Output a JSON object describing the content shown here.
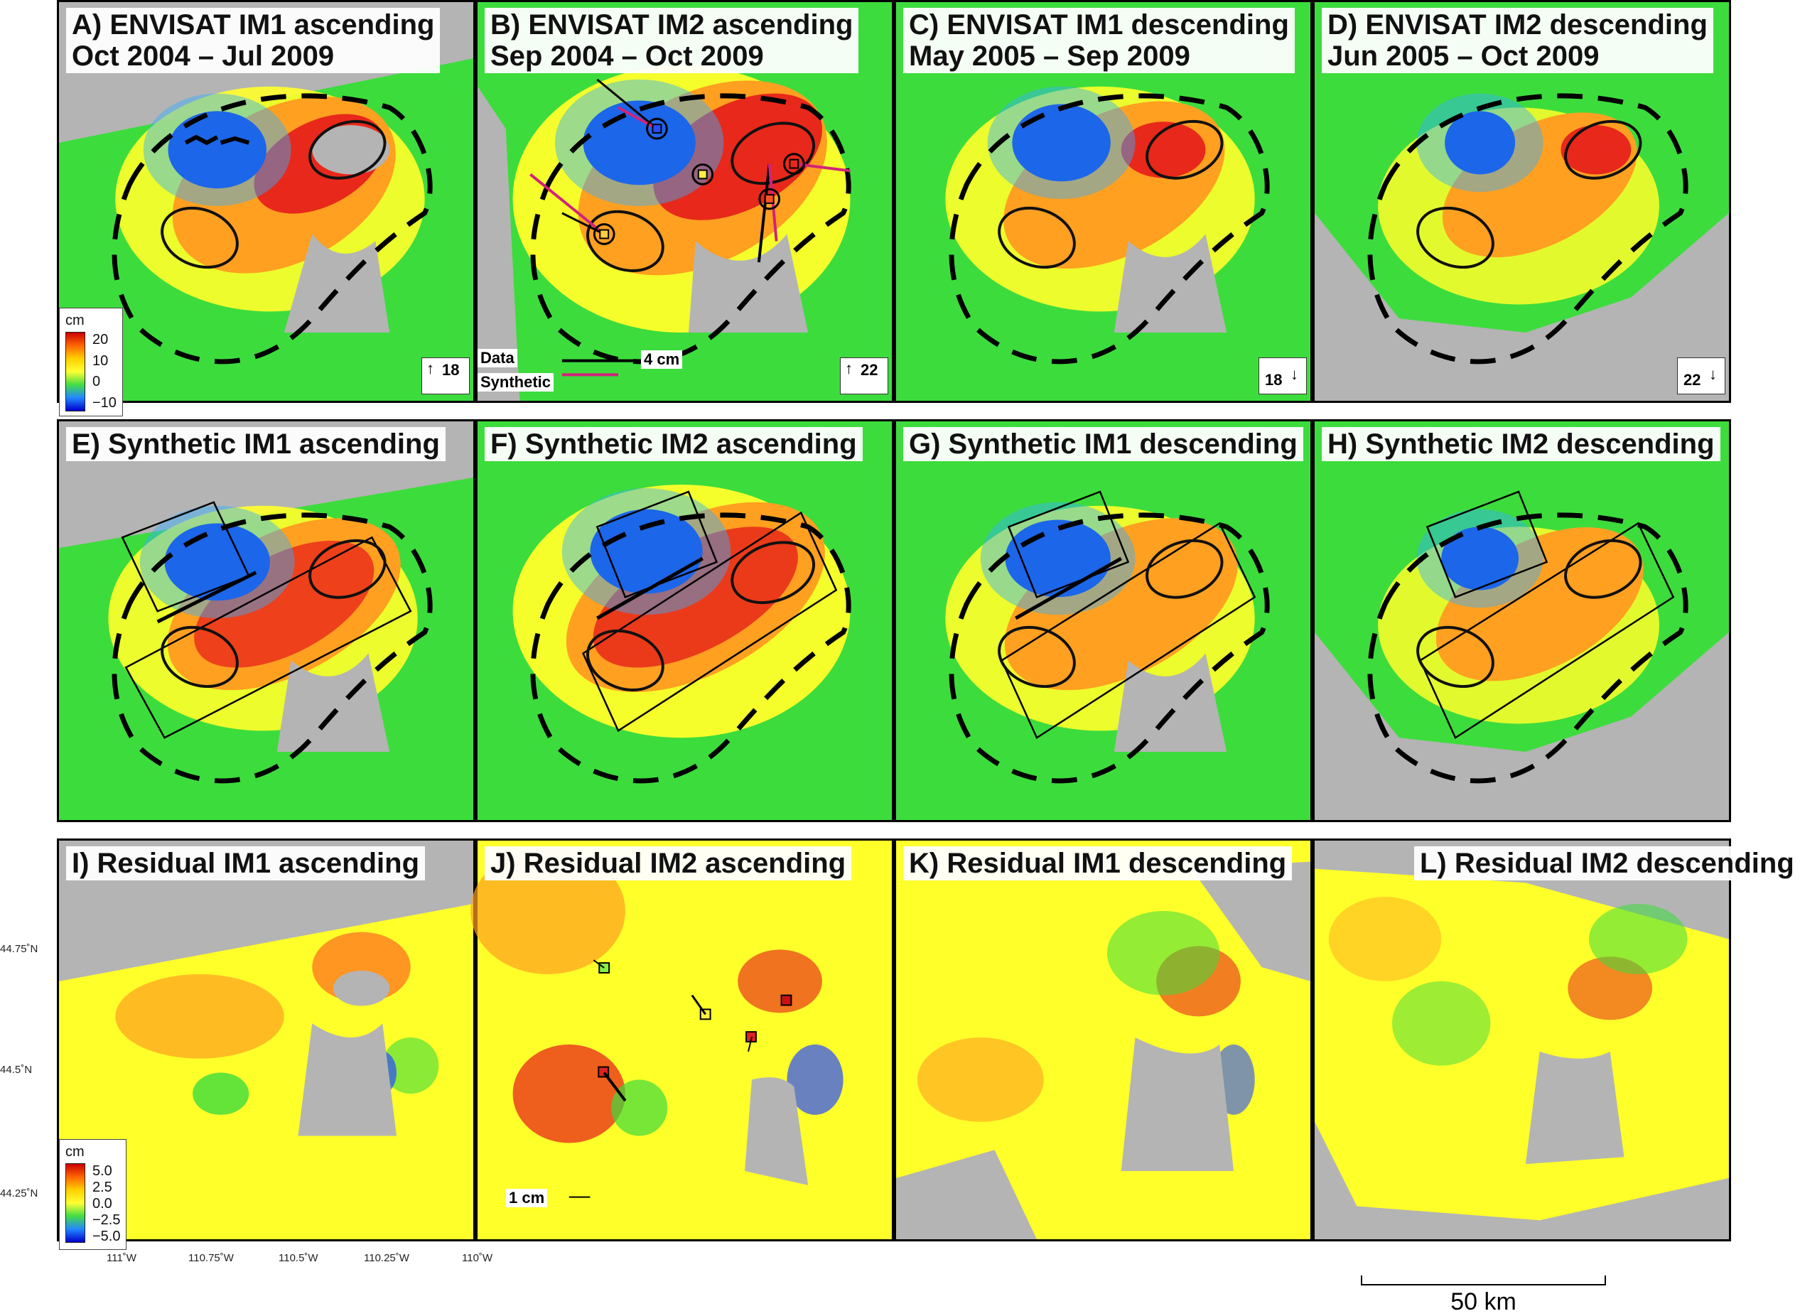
{
  "panels": {
    "a": {
      "line1": "A) ENVISAT IM1 ascending",
      "line2": "Oct 2004 – Jul 2009"
    },
    "b": {
      "line1": "B) ENVISAT IM2 ascending",
      "line2": "Sep 2004 – Oct 2009"
    },
    "c": {
      "line1": "C) ENVISAT IM1 descending",
      "line2": "May 2005 – Sep 2009"
    },
    "d": {
      "line1": "D) ENVISAT IM2 descending",
      "line2": "Jun 2005 – Oct 2009"
    },
    "e": {
      "line1": "E) Synthetic IM1 ascending"
    },
    "f": {
      "line1": "F) Synthetic IM2 ascending"
    },
    "g": {
      "line1": "G) Synthetic IM1 descending"
    },
    "h": {
      "line1": "H) Synthetic IM2 descending"
    },
    "i": {
      "line1": "I) Residual IM1 ascending"
    },
    "j": {
      "line1": "J) Residual IM2 ascending"
    },
    "k": {
      "line1": "K) Residual IM1 descending"
    },
    "l": {
      "line1": "L) Residual IM2 descending"
    }
  },
  "colorbar_top": {
    "unit": "cm",
    "ticks": [
      "20",
      "10",
      "0",
      "−10"
    ],
    "colors": [
      "#cc0000",
      "#ff6600",
      "#ffd000",
      "#ffff33",
      "#44dd44",
      "#2288ff",
      "#0000cc"
    ]
  },
  "colorbar_bottom": {
    "unit": "cm",
    "ticks": [
      "5.0",
      "2.5",
      "0.0",
      "−2.5",
      "−5.0"
    ]
  },
  "look_angles": {
    "asc_im1": "18",
    "asc_im2": "22",
    "desc_im1": "18",
    "desc_im2": "22"
  },
  "gps_legend": {
    "data": "Data",
    "synthetic": "Synthetic",
    "scale": "4 cm"
  },
  "residual_scale": "1 cm",
  "axis": {
    "lon_ticks": [
      "111˚W",
      "110.75˚W",
      "110.5˚W",
      "110.25˚W",
      "110˚W"
    ],
    "lat_ticks": [
      "44.75˚N",
      "44.5˚N",
      "44.25˚N"
    ]
  },
  "scalebar": "50 km",
  "colors": {
    "gray": "#b4b4b4",
    "green": "#3ddc3d",
    "blue": "#0a2bd8",
    "red": "#e8281a",
    "yellow": "#ffff2a",
    "magenta": "#d2237a"
  }
}
